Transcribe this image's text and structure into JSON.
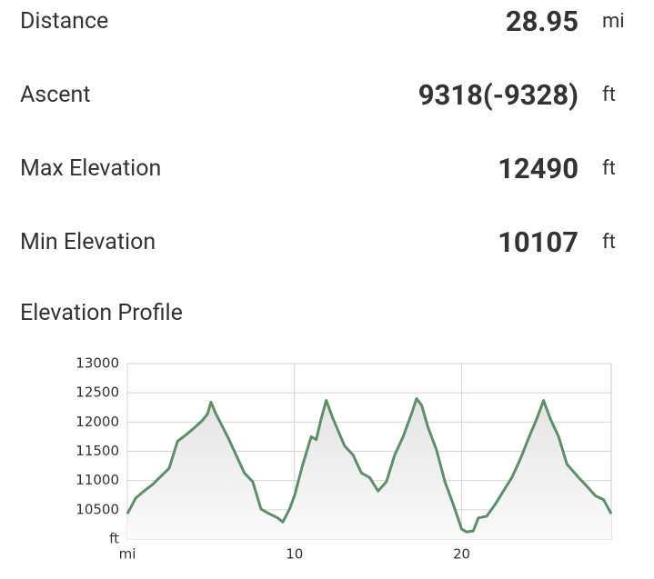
{
  "stats": [
    {
      "label": "Distance",
      "value": "28.95",
      "unit": "mi"
    },
    {
      "label": "Ascent",
      "value": "9318(-9328)",
      "unit": "ft"
    },
    {
      "label": "Max Elevation",
      "value": "12490",
      "unit": "ft"
    },
    {
      "label": "Min Elevation",
      "value": "10107",
      "unit": "ft"
    }
  ],
  "chart_data": {
    "type": "area",
    "title": "Elevation Profile",
    "x": [
      0,
      0.5,
      1,
      1.5,
      2.5,
      3,
      3.5,
      4,
      4.5,
      4.8,
      5,
      5.3,
      6,
      7,
      7.5,
      8,
      8.5,
      9,
      9.3,
      9.7,
      10,
      10.5,
      11,
      11.3,
      11.6,
      11.9,
      12.3,
      13,
      13.5,
      14,
      14.5,
      15,
      15.5,
      16,
      16.5,
      17,
      17.3,
      17.6,
      18,
      18.5,
      19,
      19.5,
      20,
      20.3,
      20.7,
      21,
      21.5,
      22,
      22.5,
      23,
      23.5,
      24,
      24.5,
      24.9,
      25.3,
      25.8,
      26.3,
      27,
      27.5,
      28,
      28.5,
      28.95
    ],
    "values": [
      10430,
      10700,
      10820,
      10930,
      11210,
      11670,
      11780,
      11900,
      12030,
      12140,
      12340,
      12140,
      11750,
      11130,
      10980,
      10510,
      10430,
      10360,
      10290,
      10510,
      10740,
      11280,
      11750,
      11700,
      12060,
      12370,
      12060,
      11590,
      11440,
      11130,
      11050,
      10820,
      10980,
      11440,
      11750,
      12140,
      12400,
      12290,
      11900,
      11520,
      10980,
      10590,
      10170,
      10120,
      10140,
      10360,
      10390,
      10590,
      10820,
      11050,
      11360,
      11720,
      12060,
      12370,
      12060,
      11750,
      11280,
      11050,
      10900,
      10740,
      10670,
      10430
    ],
    "color": "#5e8f6a",
    "xlim": [
      0,
      28.95
    ],
    "xticks": [
      {
        "value": 0,
        "label": "mi"
      },
      10,
      20
    ],
    "ylim": [
      10000,
      13000
    ],
    "yticks": [
      {
        "value": 10000,
        "label": "ft"
      },
      10500,
      11000,
      11500,
      12000,
      12500,
      13000
    ],
    "grid": true
  }
}
